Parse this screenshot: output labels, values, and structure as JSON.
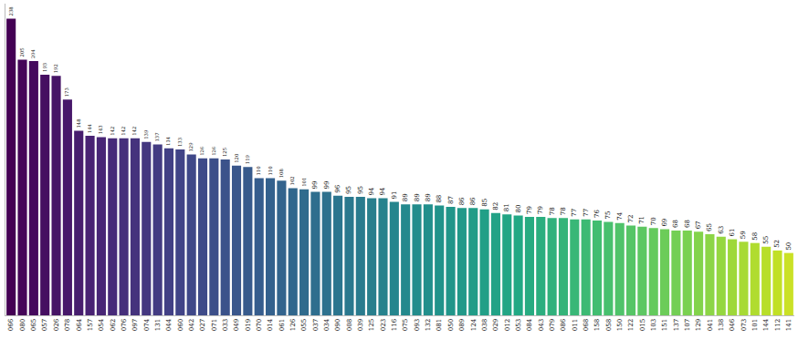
{
  "chart_data": {
    "type": "bar",
    "categories": [
      "066",
      "080",
      "065",
      "057",
      "026",
      "078",
      "064",
      "157",
      "054",
      "062",
      "076",
      "097",
      "074",
      "131",
      "044",
      "060",
      "042",
      "027",
      "071",
      "033",
      "049",
      "019",
      "070",
      "014",
      "061",
      "126",
      "055",
      "037",
      "034",
      "090",
      "008",
      "039",
      "125",
      "023",
      "116",
      "075",
      "093",
      "132",
      "081",
      "050",
      "089",
      "124",
      "038",
      "029",
      "012",
      "053",
      "084",
      "043",
      "079",
      "086",
      "011",
      "068",
      "158",
      "058",
      "150",
      "122",
      "015",
      "103",
      "151",
      "137",
      "107",
      "129",
      "041",
      "138",
      "046",
      "073",
      "101",
      "144",
      "112",
      "141"
    ],
    "values": [
      238,
      205,
      204,
      193,
      192,
      173,
      148,
      144,
      143,
      142,
      142,
      142,
      139,
      137,
      134,
      133,
      129,
      126,
      126,
      125,
      120,
      119,
      110,
      110,
      108,
      102,
      101,
      99,
      99,
      96,
      95,
      95,
      94,
      94,
      91,
      89,
      89,
      89,
      88,
      87,
      86,
      86,
      85,
      82,
      81,
      80,
      79,
      79,
      78,
      78,
      77,
      77,
      76,
      75,
      74,
      72,
      71,
      70,
      69,
      68,
      68,
      67,
      65,
      63,
      61,
      59,
      58,
      55,
      52,
      50
    ],
    "colors": [
      "#440154",
      "#450658",
      "#450a5d",
      "#460f61",
      "#461466",
      "#47186a",
      "#471d6e",
      "#482273",
      "#482676",
      "#472a79",
      "#462f7b",
      "#45337d",
      "#443780",
      "#433b82",
      "#424085",
      "#414487",
      "#3f4888",
      "#3e4b89",
      "#3c4f89",
      "#3b528a",
      "#39568b",
      "#375a8c",
      "#365d8d",
      "#34618d",
      "#33648d",
      "#31678d",
      "#306b8d",
      "#2e6e8e",
      "#2d718e",
      "#2b758e",
      "#2a788e",
      "#297b8e",
      "#287f8d",
      "#26828d",
      "#25858d",
      "#24898d",
      "#238c8c",
      "#228f8c",
      "#21938b",
      "#21968a",
      "#219989",
      "#219c88",
      "#229f87",
      "#22a286",
      "#22a585",
      "#22a884",
      "#27ab81",
      "#2bae7f",
      "#30b17c",
      "#34b479",
      "#39b777",
      "#3dba74",
      "#42bd71",
      "#48c06e",
      "#4fc36a",
      "#56c566",
      "#5dc762",
      "#64ca5d",
      "#6ccc59",
      "#73cf55",
      "#7ad151",
      "#83d34b",
      "#8cd546",
      "#95d740",
      "#9ed83a",
      "#a7da34",
      "#b0dc2f",
      "#b8de29",
      "#c1e026",
      "#cae126"
    ],
    "ylim": [
      0,
      250
    ],
    "grid": false,
    "data_labels": true,
    "tick_labels": "x"
  }
}
